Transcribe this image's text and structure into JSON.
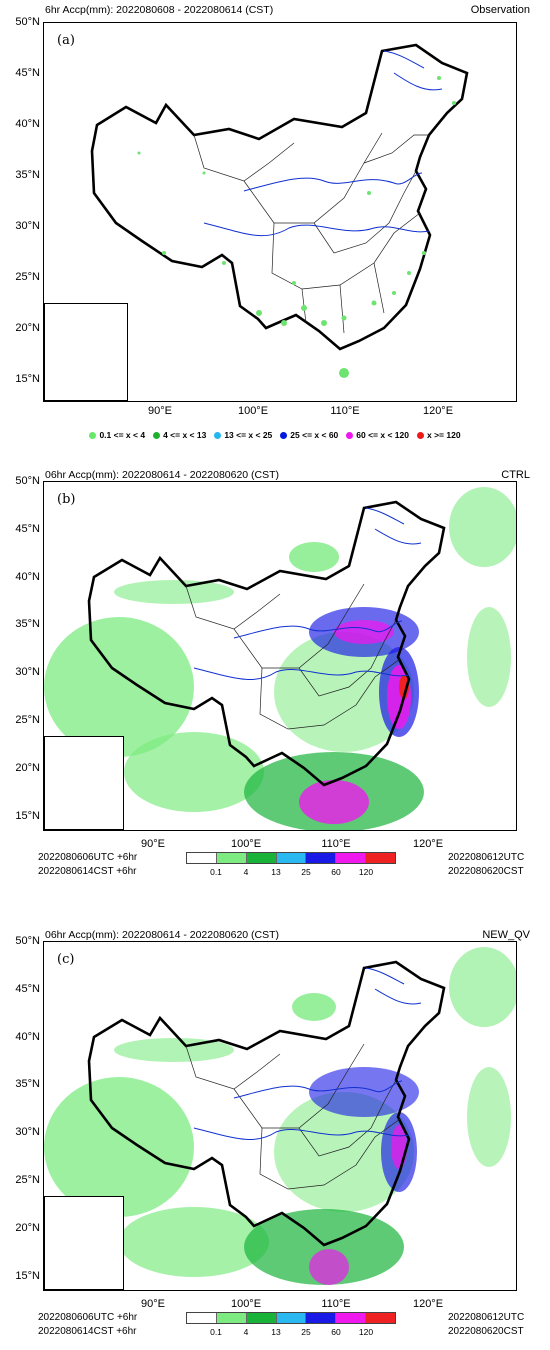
{
  "panel_a": {
    "title": "6hr Accp(mm): 2022080608 - 2022080614 (CST)",
    "right_label": "Observation",
    "label": "(a)"
  },
  "panel_b": {
    "title": "06hr Accp(mm): 2022080614 - 2022080620 (CST)",
    "right_label": "CTRL",
    "label": "(b)",
    "foot_left_1": "2022080606UTC  +6hr",
    "foot_left_2": "2022080614CST  +6hr",
    "foot_right_1": "2022080612UTC",
    "foot_right_2": "2022080620CST"
  },
  "panel_c": {
    "title": "06hr Accp(mm): 2022080614 - 2022080620 (CST)",
    "right_label": "NEW_QV",
    "label": "(c)",
    "foot_left_1": "2022080606UTC  +6hr",
    "foot_left_2": "2022080614CST  +6hr",
    "foot_right_1": "2022080612UTC",
    "foot_right_2": "2022080620CST"
  },
  "lat_ticks": [
    "50°N",
    "45°N",
    "40°N",
    "35°N",
    "30°N",
    "25°N",
    "20°N",
    "15°N"
  ],
  "lon_ticks": [
    "90°E",
    "100°E",
    "110°E",
    "120°E"
  ],
  "obs_legend": [
    {
      "label": "0.1 <= x < 4",
      "color": "#66e86a"
    },
    {
      "label": "4 <= x < 13",
      "color": "#1fae2e"
    },
    {
      "label": "13 <= x < 25",
      "color": "#25b6ef"
    },
    {
      "label": "25 <= x < 60",
      "color": "#0018e0"
    },
    {
      "label": "60 <= x < 120",
      "color": "#ee17ee"
    },
    {
      "label": "x >= 120",
      "color": "#ee1a1a"
    }
  ],
  "colorbar": {
    "colors": [
      "#ffffff",
      "#7deb82",
      "#19b33a",
      "#2ab8f0",
      "#1a1ae6",
      "#ee1aee",
      "#ee2222"
    ],
    "labels": [
      "0.1",
      "4",
      "13",
      "25",
      "60",
      "120"
    ]
  }
}
